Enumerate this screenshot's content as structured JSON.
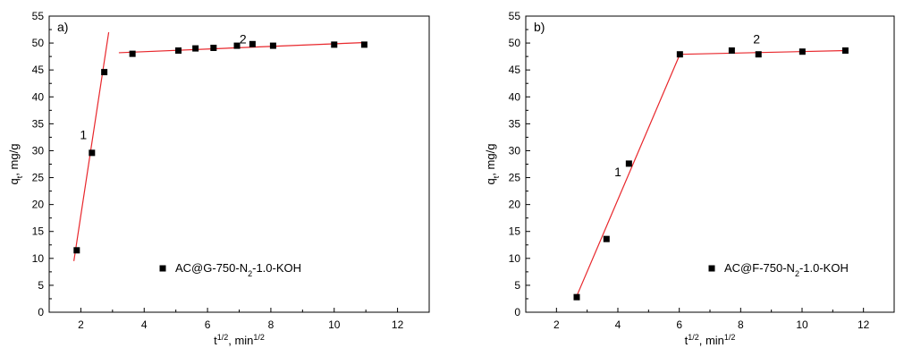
{
  "chart_data": [
    {
      "type": "scatter",
      "panel_label": "a)",
      "xlabel_base": "t",
      "xlabel_sup": "1/2",
      "xlabel_unit": ", min",
      "xlabel_unit_sup": "1/2",
      "ylabel_base": "q",
      "ylabel_sub": "t",
      "ylabel_unit": ", mg/g",
      "xlim": [
        1,
        13
      ],
      "ylim": [
        0,
        55
      ],
      "xticks": [
        "2",
        "4",
        "6",
        "8",
        "10",
        "12"
      ],
      "yticks": [
        "0",
        "5",
        "10",
        "15",
        "20",
        "25",
        "30",
        "35",
        "40",
        "45",
        "50",
        "55"
      ],
      "grid": false,
      "legend": {
        "position": "bottom-center",
        "label_pre": "AC@G-750-N",
        "label_sub": "2",
        "label_post": "-1.0-KOH"
      },
      "series": [
        {
          "x": [
            1.87,
            2.35,
            2.74,
            3.63,
            5.08,
            5.62,
            6.19,
            6.93,
            7.42,
            8.07,
            10.0,
            10.95
          ],
          "y": [
            11.5,
            29.6,
            44.6,
            48.0,
            48.6,
            49.0,
            49.1,
            49.5,
            49.8,
            49.5,
            49.7,
            49.7
          ]
        }
      ],
      "fit_lines": [
        {
          "label": "1",
          "x": [
            1.78,
            2.88
          ],
          "y": [
            9.5,
            52.0
          ]
        },
        {
          "label": "2",
          "x": [
            3.2,
            11.0
          ],
          "y": [
            48.2,
            50.1
          ]
        }
      ],
      "annotations": [
        {
          "text": "1",
          "x": 2.08,
          "y": 33
        },
        {
          "text": "2",
          "x": 7.12,
          "y": 50.8
        }
      ]
    },
    {
      "type": "scatter",
      "panel_label": "b)",
      "xlabel_base": "t",
      "xlabel_sup": "1/2",
      "xlabel_unit": ", min",
      "xlabel_unit_sup": "1/2",
      "ylabel_base": "q",
      "ylabel_sub": "t",
      "ylabel_unit": ", mg/g",
      "xlim": [
        1,
        13
      ],
      "ylim": [
        0,
        55
      ],
      "xticks": [
        "2",
        "4",
        "6",
        "8",
        "10",
        "12"
      ],
      "yticks": [
        "0",
        "5",
        "10",
        "15",
        "20",
        "25",
        "30",
        "35",
        "40",
        "45",
        "50",
        "55"
      ],
      "grid": false,
      "legend": {
        "position": "bottom-center",
        "label_pre": "AC@F-750-N",
        "label_sub": "2",
        "label_post": "-1.0-KOH"
      },
      "series": [
        {
          "x": [
            2.66,
            3.63,
            4.36,
            6.02,
            7.71,
            8.58,
            10.01,
            11.41
          ],
          "y": [
            2.8,
            13.6,
            27.6,
            47.9,
            48.6,
            47.9,
            48.4,
            48.6
          ]
        }
      ],
      "fit_lines": [
        {
          "label": "1",
          "x": [
            2.66,
            6.02
          ],
          "y": [
            3.0,
            47.9
          ]
        },
        {
          "label": "2",
          "x": [
            6.02,
            11.45
          ],
          "y": [
            47.9,
            48.6
          ]
        }
      ],
      "annotations": [
        {
          "text": "1",
          "x": 4.0,
          "y": 26.1
        },
        {
          "text": "2",
          "x": 8.52,
          "y": 50.8
        }
      ]
    }
  ]
}
